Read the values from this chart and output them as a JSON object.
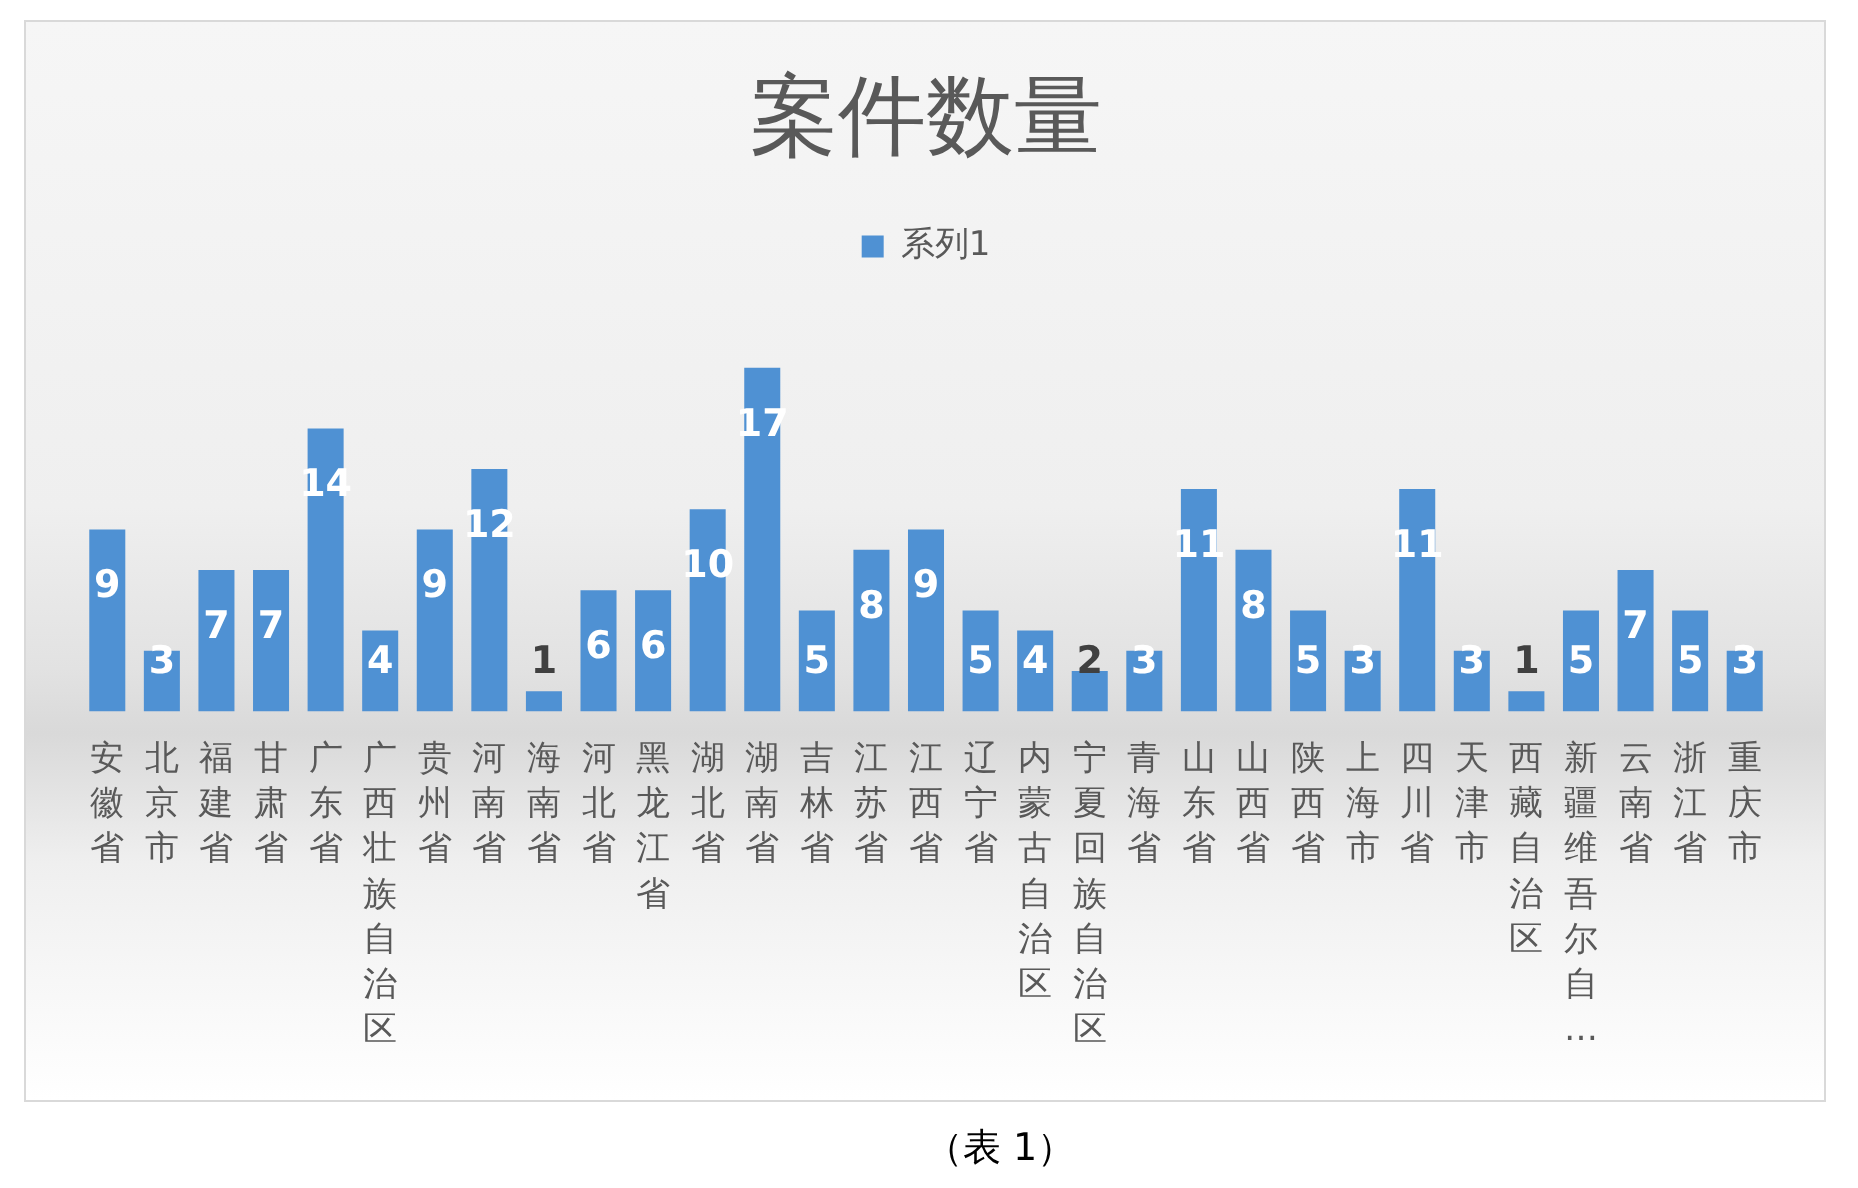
{
  "chart_data": {
    "type": "bar",
    "title": "案件数量",
    "categories": [
      "安徽省",
      "北京市",
      "福建省",
      "甘肃省",
      "广东省",
      "广西壮族自治区",
      "贵州省",
      "河南省",
      "海南省",
      "河北省",
      "黑龙江省",
      "湖北省",
      "湖南省",
      "吉林省",
      "江苏省",
      "江西省",
      "辽宁省",
      "内蒙古自治区",
      "宁夏回族自治区",
      "青海省",
      "山东省",
      "山西省",
      "陕西省",
      "上海市",
      "四川省",
      "天津市",
      "西藏自治区",
      "新疆维吾尔自…",
      "云南省",
      "浙江省",
      "重庆市"
    ],
    "series": [
      {
        "name": "系列1",
        "color": "#4f91d3",
        "values": [
          9,
          3,
          7,
          7,
          14,
          4,
          9,
          12,
          1,
          6,
          6,
          10,
          17,
          5,
          8,
          9,
          5,
          4,
          2,
          3,
          11,
          8,
          5,
          3,
          11,
          3,
          1,
          5,
          7,
          5,
          3
        ]
      }
    ],
    "data_labels": true,
    "legend": "top",
    "tick_labels": "x",
    "annotations": [
      "（表 1）"
    ]
  }
}
